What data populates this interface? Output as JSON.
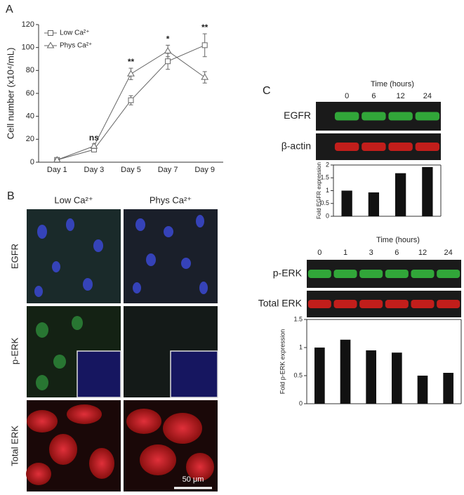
{
  "chart_data": [
    {
      "type": "line",
      "ylabel": "Cell number (x10⁴/mL)",
      "categories": [
        "Day 1",
        "Day 3",
        "Day 5",
        "Day 7",
        "Day 9"
      ],
      "series": [
        {
          "name": "Low Ca²⁺",
          "color": "#666666",
          "marker": "square",
          "values": [
            2,
            11,
            54,
            88,
            102
          ],
          "errors": [
            1,
            2,
            4,
            7,
            10
          ]
        },
        {
          "name": "Phys Ca²⁺",
          "color": "#666666",
          "marker": "triangle",
          "values": [
            2,
            14,
            77,
            97,
            74
          ],
          "errors": [
            1,
            2,
            5,
            5,
            5
          ]
        }
      ],
      "annotations": [
        {
          "text": "ns",
          "x": "Day 3"
        },
        {
          "text": "**",
          "x": "Day 5"
        },
        {
          "text": "*",
          "x": "Day 7"
        },
        {
          "text": "**",
          "x": "Day 9"
        }
      ],
      "ylim": [
        0,
        120
      ],
      "yticks": [
        0,
        20,
        40,
        60,
        80,
        100,
        120
      ],
      "legend": "top-left"
    },
    {
      "type": "bar",
      "xlabel": "Time (hours)",
      "ylabel": "Fold EGFR expression",
      "categories": [
        "0",
        "6",
        "12",
        "24"
      ],
      "values": [
        1.0,
        0.93,
        1.68,
        1.92
      ],
      "color": "#111111",
      "blot_labels": [
        "EGFR",
        "β-actin"
      ],
      "blot_colors": [
        "#36c040",
        "#e0201c"
      ],
      "ylim": [
        0,
        2
      ],
      "yticks": [
        0,
        0.5,
        1,
        1.5,
        2
      ]
    },
    {
      "type": "bar",
      "xlabel": "Time (hours)",
      "ylabel": "Fold p-ERK expression",
      "categories": [
        "0",
        "1",
        "3",
        "6",
        "12",
        "24"
      ],
      "values": [
        1.0,
        1.14,
        0.95,
        0.91,
        0.5,
        0.55
      ],
      "color": "#111111",
      "blot_labels": [
        "p-ERK",
        "Total ERK"
      ],
      "blot_colors": [
        "#36c040",
        "#e0201c"
      ],
      "ylim": [
        0,
        1.5
      ],
      "yticks": [
        0,
        0.5,
        1,
        1.5
      ]
    }
  ],
  "panel_b": {
    "letter_a": "A",
    "letter": "B",
    "letter_c": "C",
    "columns": [
      "Low Ca²⁺",
      "Phys Ca²⁺"
    ],
    "rows": [
      "EGFR",
      "p-ERK",
      "Total ERK"
    ],
    "scale": "50 μm"
  }
}
